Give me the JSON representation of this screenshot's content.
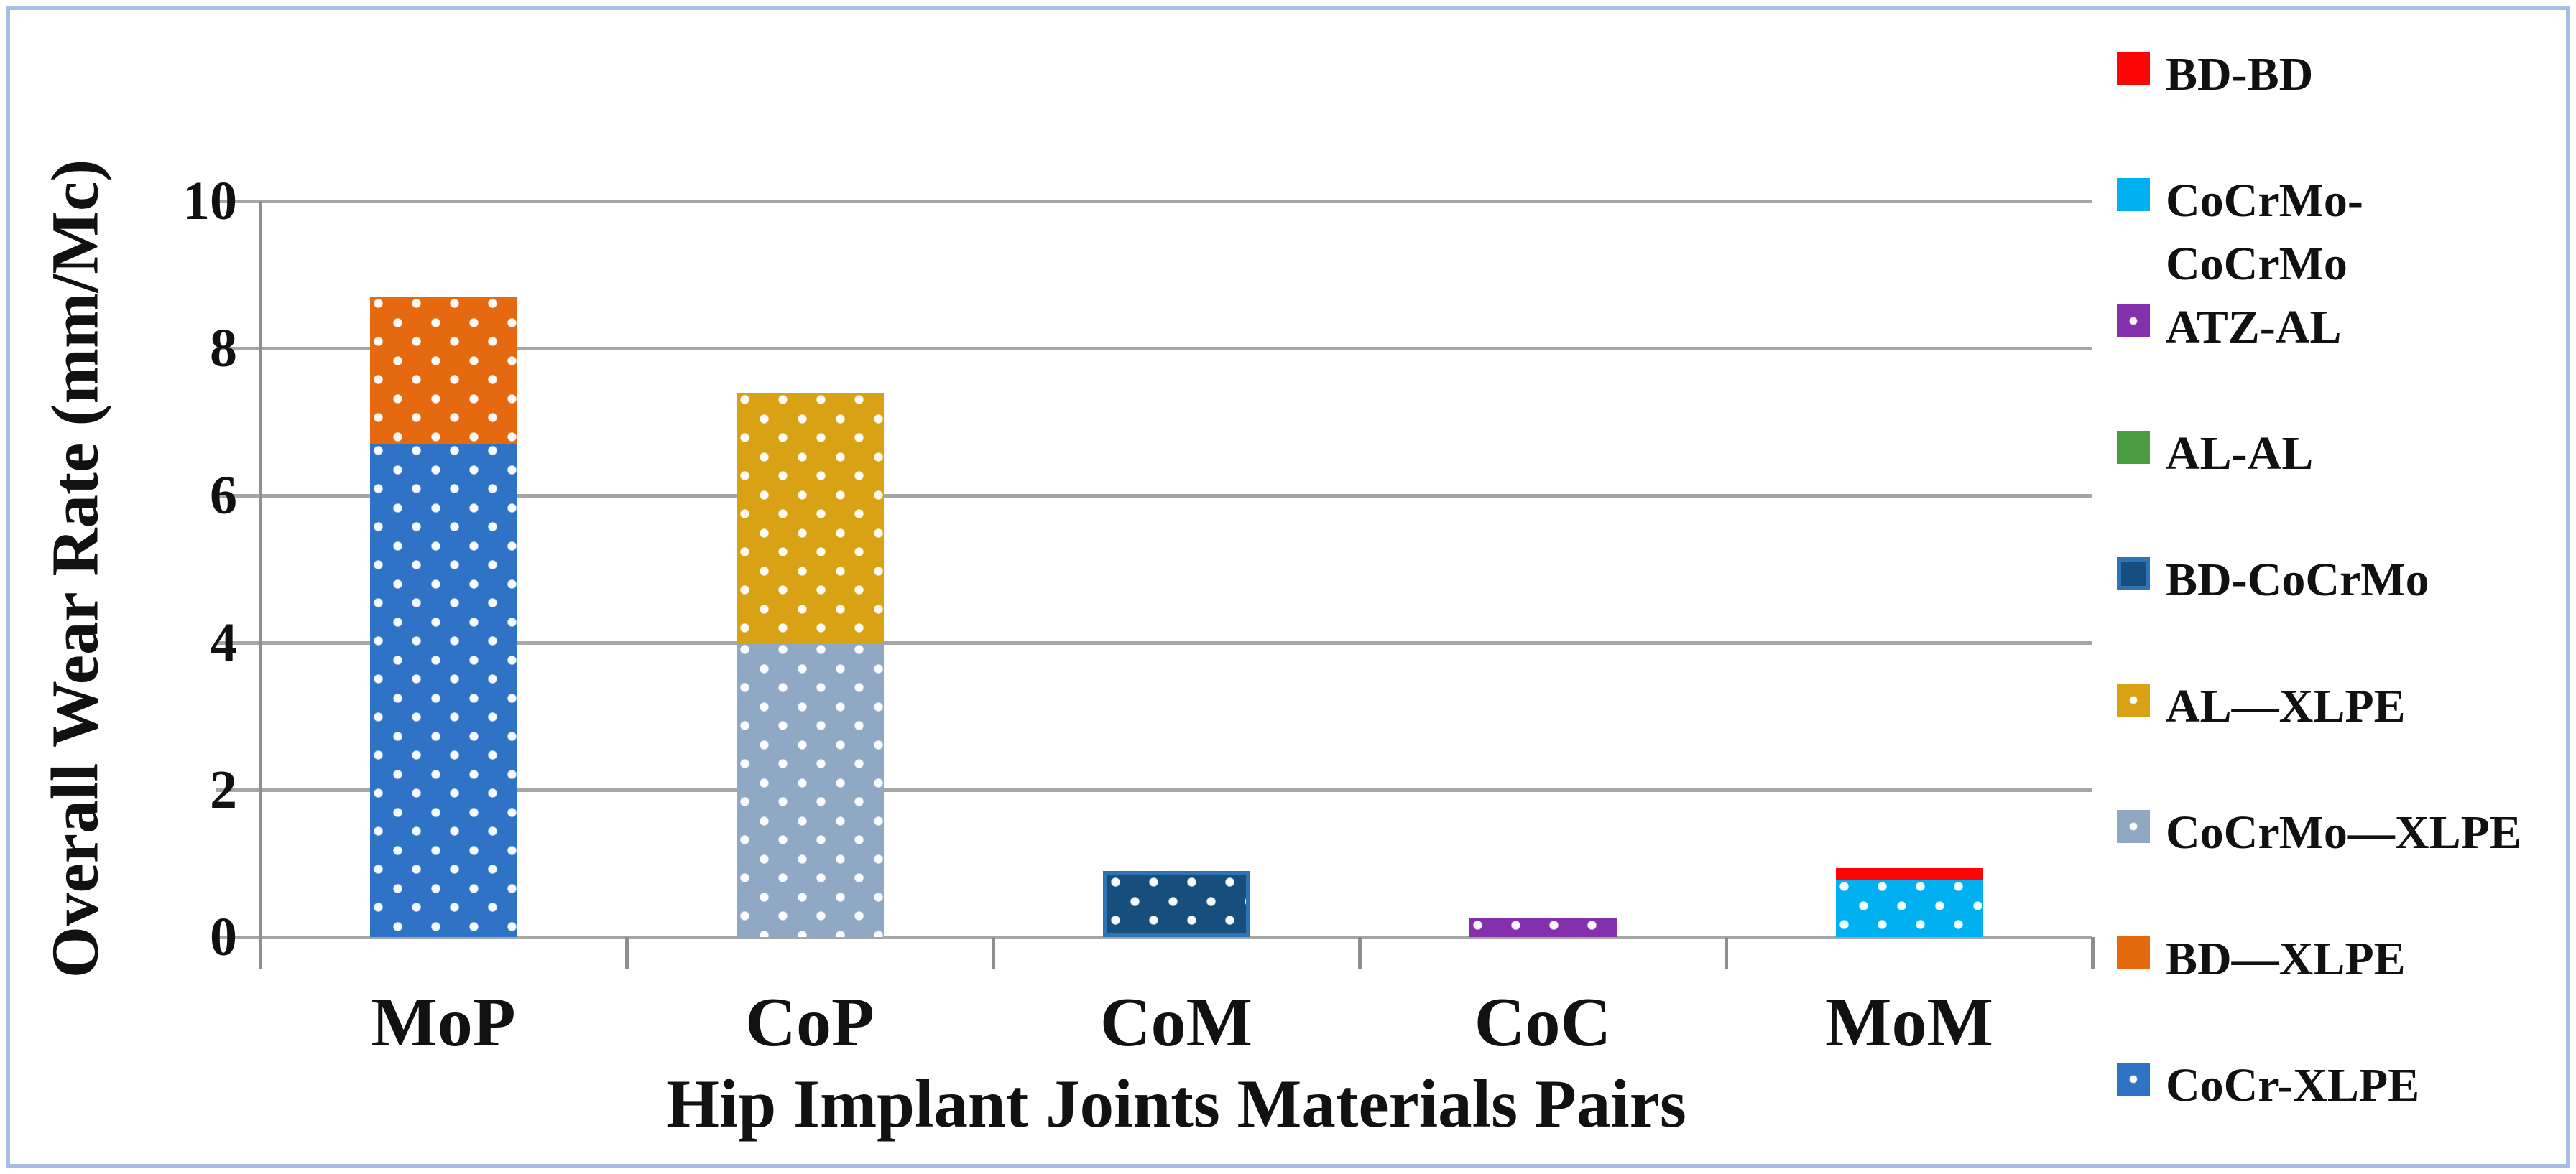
{
  "figure": {
    "background": "#ffffff",
    "border_color": "#a9bce6"
  },
  "chart_data": {
    "type": "bar",
    "stacked": true,
    "title": "",
    "xlabel": "Hip Implant Joints Materials Pairs",
    "ylabel": "Overall Wear Rate (mm/Mc)",
    "ylim": [
      0,
      10
    ],
    "yticks": [
      0,
      2,
      4,
      6,
      8,
      10
    ],
    "grid": "horizontal",
    "categories": [
      "MoP",
      "CoP",
      "CoM",
      "CoC",
      "MoM"
    ],
    "series": [
      {
        "name": "BD-BD",
        "color": "#fb0505",
        "dots": false,
        "swatch_dot": false,
        "values": [
          0,
          0,
          0,
          0,
          0.16
        ]
      },
      {
        "name": "CoCrMo-CoCrMo",
        "display": "CoCrMo-\nCoCrMo",
        "color": "#00b0f0",
        "dots": true,
        "swatch_dot": false,
        "values": [
          0,
          0,
          0,
          0,
          0.78
        ]
      },
      {
        "name": "ATZ-AL",
        "color": "#8430ad",
        "dots": true,
        "swatch_dot": true,
        "values": [
          0,
          0,
          0,
          0.25,
          0
        ]
      },
      {
        "name": "AL-AL",
        "color": "#4a9e41",
        "dots": false,
        "swatch_dot": false,
        "values": [
          0,
          0,
          0,
          0,
          0
        ]
      },
      {
        "name": "BD-CoCrMo",
        "color": "#164f7d",
        "border_color": "#2e74b5",
        "dots": true,
        "swatch_dot": false,
        "values": [
          0,
          0,
          0.9,
          0,
          0
        ]
      },
      {
        "name": "AL—XLPE",
        "color": "#d9a214",
        "dots": true,
        "swatch_dot": true,
        "values": [
          0,
          3.4,
          0,
          0,
          0
        ]
      },
      {
        "name": "CoCrMo—XLPE",
        "color": "#8fa9c4",
        "dots": true,
        "swatch_dot": true,
        "values": [
          0,
          4.0,
          0,
          0,
          0
        ]
      },
      {
        "name": "BD—XLPE",
        "color": "#e5690e",
        "dots": true,
        "swatch_dot": false,
        "values": [
          2.0,
          0,
          0,
          0,
          0
        ]
      },
      {
        "name": "CoCr-XLPE",
        "color": "#2e73c6",
        "dots": true,
        "swatch_dot": true,
        "values": [
          6.7,
          0,
          0,
          0,
          0
        ]
      }
    ],
    "stack_order": {
      "MoP": [
        "CoCr-XLPE",
        "BD—XLPE"
      ],
      "CoP": [
        "CoCrMo—XLPE",
        "AL—XLPE"
      ],
      "CoM": [
        "BD-CoCrMo"
      ],
      "CoC": [
        "ATZ-AL"
      ],
      "MoM": [
        "CoCrMo-CoCrMo",
        "BD-BD"
      ]
    },
    "stack_totals": {
      "MoP": 8.7,
      "CoP": 7.4,
      "CoM": 0.9,
      "CoC": 0.25,
      "MoM": 0.94
    },
    "legend": {
      "position": "right",
      "order": [
        "BD-BD",
        "CoCrMo-CoCrMo",
        "ATZ-AL",
        "AL-AL",
        "BD-CoCrMo",
        "AL—XLPE",
        "CoCrMo—XLPE",
        "BD—XLPE",
        "CoCr-XLPE"
      ]
    }
  }
}
